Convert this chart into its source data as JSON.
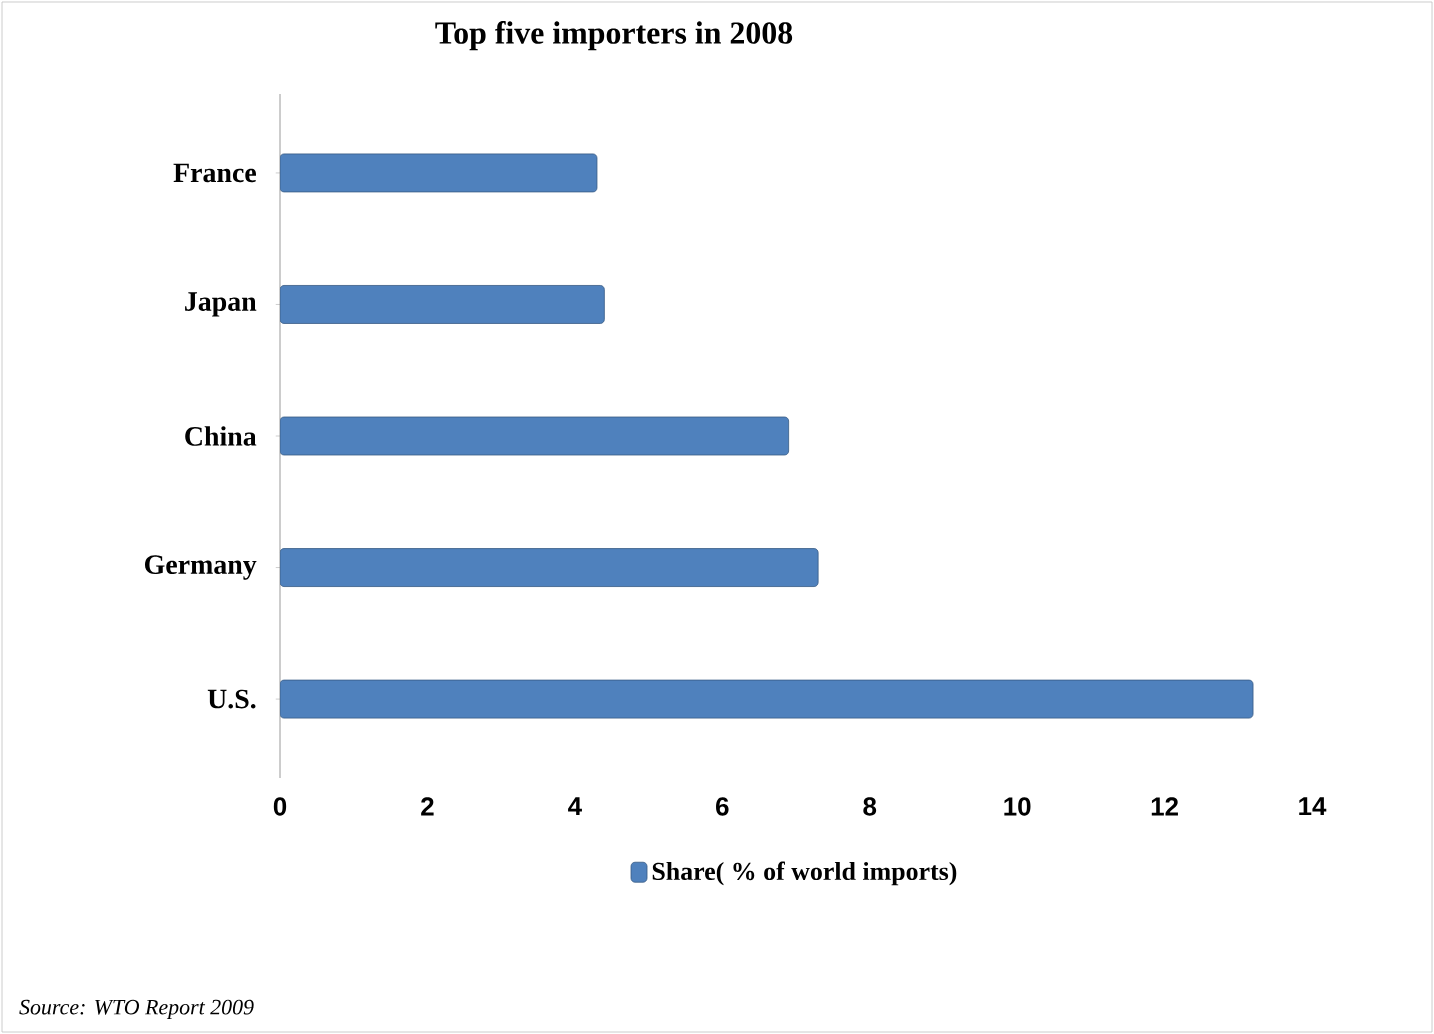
{
  "chart_data": {
    "type": "bar",
    "orientation": "horizontal",
    "title": "Top five importers in 2008",
    "categories": [
      "France",
      "Japan",
      "China",
      "Germany",
      "U.S."
    ],
    "series": [
      {
        "name": "Share( % of world imports)",
        "color": "#4f81bd",
        "values": [
          4.3,
          4.4,
          6.9,
          7.3,
          13.2
        ]
      }
    ],
    "xlim": [
      0,
      14
    ],
    "xticks": [
      0,
      2,
      4,
      6,
      8,
      10,
      12,
      14
    ],
    "grid": false,
    "legend": "bottom",
    "annotations": [
      "Source: WTO Report 2009"
    ]
  }
}
